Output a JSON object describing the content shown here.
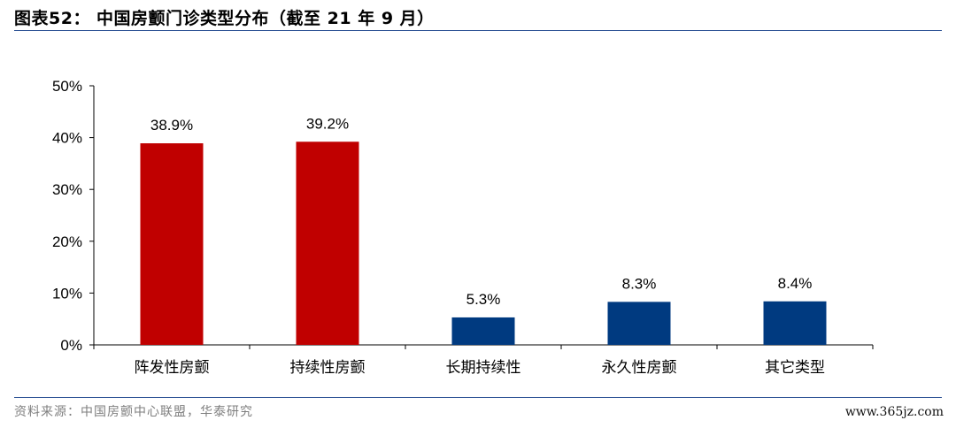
{
  "header": {
    "title": "图表52： 中国房颤门诊类型分布（截至 21 年 9 月）"
  },
  "footer": {
    "source": "资料来源：中国房颤中心联盟，华泰研究",
    "watermark": "www.365jz.com"
  },
  "colors": {
    "red": "#c00000",
    "blue": "#003a80",
    "rule": "#2f5496"
  },
  "chart_data": {
    "type": "bar",
    "title": "",
    "xlabel": "",
    "ylabel": "",
    "categories": [
      "阵发性房颤",
      "持续性房颤",
      "长期持续性",
      "永久性房颤",
      "其它类型"
    ],
    "values": [
      38.9,
      39.2,
      5.3,
      8.3,
      8.4
    ],
    "value_labels": [
      "38.9%",
      "39.2%",
      "5.3%",
      "8.3%",
      "8.4%"
    ],
    "bar_colors": [
      "red",
      "red",
      "blue",
      "blue",
      "blue"
    ],
    "ylim": [
      0,
      50
    ],
    "yticks": [
      0,
      10,
      20,
      30,
      40,
      50
    ],
    "ytick_labels": [
      "0%",
      "10%",
      "20%",
      "30%",
      "40%",
      "50%"
    ],
    "grid": false,
    "legend": "none"
  }
}
